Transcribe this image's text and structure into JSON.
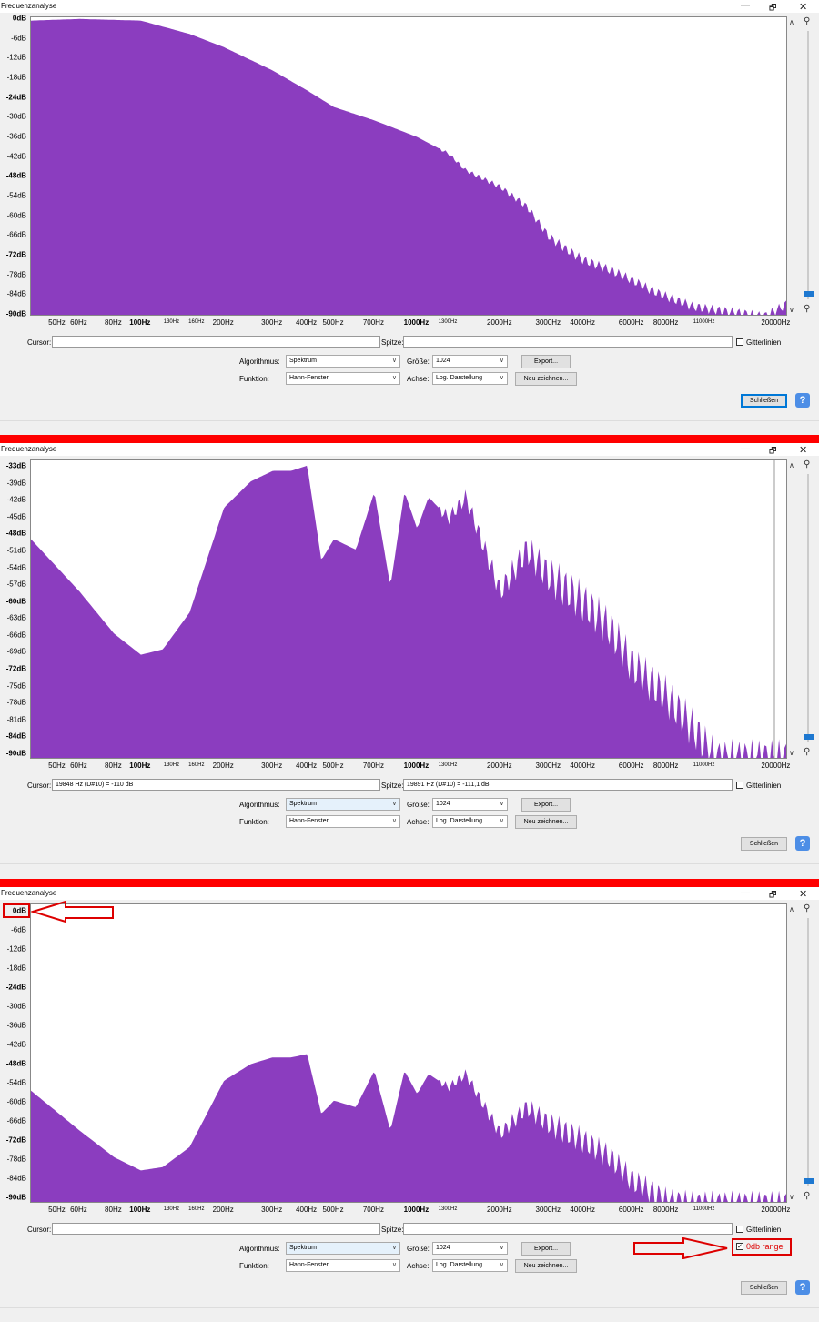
{
  "window": {
    "title": "Frequenzanalyse",
    "minimize": "—",
    "maximize": "🗗",
    "close": "✕"
  },
  "x_ticks": [
    {
      "label": "50Hz",
      "hz": 50
    },
    {
      "label": "60Hz",
      "hz": 60
    },
    {
      "label": "80Hz",
      "hz": 80
    },
    {
      "label": "100Hz",
      "hz": 100,
      "bold": true
    },
    {
      "label": "130Hz",
      "hz": 130,
      "small": true
    },
    {
      "label": "160Hz",
      "hz": 160,
      "small": true
    },
    {
      "label": "200Hz",
      "hz": 200
    },
    {
      "label": "300Hz",
      "hz": 300
    },
    {
      "label": "400Hz",
      "hz": 400
    },
    {
      "label": "500Hz",
      "hz": 500
    },
    {
      "label": "700Hz",
      "hz": 700
    },
    {
      "label": "1000Hz",
      "hz": 1000,
      "bold": true
    },
    {
      "label": "1300Hz",
      "hz": 1300,
      "small": true
    },
    {
      "label": "2000Hz",
      "hz": 2000
    },
    {
      "label": "3000Hz",
      "hz": 3000
    },
    {
      "label": "4000Hz",
      "hz": 4000
    },
    {
      "label": "6000Hz",
      "hz": 6000
    },
    {
      "label": "8000Hz",
      "hz": 8000
    },
    {
      "label": "11000Hz",
      "hz": 11000,
      "small": true
    },
    {
      "label": "20000Hz",
      "hz": 20000
    }
  ],
  "controls": {
    "cursor_label": "Cursor:",
    "peak_label": "Spitze:",
    "grid_label": "Gitterlinien",
    "algorithm_label": "Algorithmus:",
    "algorithm_value": "Spektrum",
    "function_label": "Funktion:",
    "function_value": "Hann-Fenster",
    "size_label": "Größe:",
    "size_value": "1024",
    "axis_label": "Achse:",
    "axis_value": "Log. Darstellung",
    "export_button": "Export...",
    "redraw_button": "Neu zeichnen...",
    "close_button": "Schließen",
    "help_button": "?"
  },
  "panels": [
    {
      "y_ticks": [
        "0dB",
        "-6dB",
        "-12dB",
        "-18dB",
        "-24dB",
        "-30dB",
        "-36dB",
        "-42dB",
        "-48dB",
        "-54dB",
        "-60dB",
        "-66dB",
        "-72dB",
        "-78dB",
        "-84dB",
        "-90dB"
      ],
      "y_bold": [
        "0dB",
        "-24dB",
        "-48dB",
        "-72dB",
        "-90dB"
      ],
      "y_range": [
        -90,
        0
      ],
      "cursor_value": "",
      "peak_value": "",
      "grid_checked": false
    },
    {
      "y_ticks": [
        "-33dB",
        "-39dB",
        "-42dB",
        "-45dB",
        "-48dB",
        "-51dB",
        "-54dB",
        "-57dB",
        "-60dB",
        "-63dB",
        "-66dB",
        "-69dB",
        "-72dB",
        "-75dB",
        "-78dB",
        "-81dB",
        "-84dB",
        "-90dB"
      ],
      "y_bold": [
        "-33dB",
        "-48dB",
        "-60dB",
        "-72dB",
        "-84dB",
        "-90dB"
      ],
      "y_range": [
        -90,
        -33
      ],
      "cursor_value": "19848 Hz (D#10) = -110 dB",
      "peak_value": "19891 Hz (D#10) = -111,1 dB",
      "grid_checked": false
    },
    {
      "y_ticks": [
        "0dB",
        "-6dB",
        "-12dB",
        "-18dB",
        "-24dB",
        "-30dB",
        "-36dB",
        "-42dB",
        "-48dB",
        "-54dB",
        "-60dB",
        "-66dB",
        "-72dB",
        "-78dB",
        "-84dB",
        "-90dB"
      ],
      "y_bold": [
        "0dB",
        "-24dB",
        "-48dB",
        "-72dB",
        "-90dB"
      ],
      "y_range": [
        -90,
        0
      ],
      "cursor_value": "",
      "peak_value": "",
      "grid_checked": false,
      "extra_checkbox_label": "0db range",
      "extra_checkbox_checked": true
    }
  ],
  "colors": {
    "spectrum": "#8b3dbf",
    "annotation": "#dd0000",
    "separator": "#ff0000",
    "accent": "#1e78d0"
  },
  "chart_data": [
    {
      "type": "area",
      "x_scale": "log",
      "xlim": [
        40,
        22000
      ],
      "ylim": [
        -90,
        0
      ],
      "x": [
        40,
        60,
        100,
        150,
        200,
        300,
        400,
        500,
        700,
        1000,
        1300,
        1500,
        2000,
        2500,
        3000,
        3500,
        4000,
        5000,
        6000,
        7000,
        8000,
        10000,
        12000,
        15000,
        18000,
        20000,
        22000
      ],
      "y": [
        -1,
        -0.5,
        -1,
        -5,
        -9,
        -16,
        -22,
        -27,
        -31,
        -36,
        -41,
        -46,
        -51,
        -57,
        -66,
        -70,
        -73,
        -76,
        -79,
        -82,
        -84,
        -87,
        -88,
        -89,
        -90,
        -88,
        -86
      ]
    },
    {
      "type": "area",
      "x_scale": "log",
      "xlim": [
        40,
        22000
      ],
      "ylim": [
        -90,
        -33
      ],
      "x": [
        40,
        60,
        80,
        100,
        120,
        150,
        200,
        250,
        300,
        350,
        400,
        450,
        500,
        600,
        700,
        800,
        900,
        1000,
        1100,
        1300,
        1500,
        2000,
        2500,
        3000,
        4000,
        5000,
        6000,
        8000,
        10000,
        12000,
        15000,
        20000
      ],
      "y": [
        -48,
        -58,
        -66,
        -70,
        -69,
        -62,
        -42,
        -37,
        -35,
        -35,
        -34,
        -52,
        -48,
        -50,
        -39,
        -57,
        -39,
        -46,
        -40,
        -44,
        -40,
        -58,
        -50,
        -55,
        -60,
        -65,
        -72,
        -78,
        -84,
        -90,
        -90,
        -90
      ]
    },
    {
      "type": "area",
      "x_scale": "log",
      "xlim": [
        40,
        22000
      ],
      "ylim": [
        -90,
        0
      ],
      "x": [
        40,
        60,
        80,
        100,
        120,
        150,
        200,
        250,
        300,
        350,
        400,
        450,
        500,
        600,
        700,
        800,
        900,
        1000,
        1100,
        1300,
        1500,
        2000,
        2500,
        3000,
        4000,
        5000,
        6000,
        8000,
        10000,
        12000,
        15000,
        20000
      ],
      "y": [
        -56,
        -68,
        -76,
        -80,
        -79,
        -73,
        -53,
        -48,
        -46,
        -46,
        -45,
        -63,
        -59,
        -61,
        -50,
        -68,
        -50,
        -57,
        -51,
        -55,
        -51,
        -69,
        -61,
        -66,
        -71,
        -76,
        -83,
        -89,
        -90,
        -90,
        -90,
        -90
      ]
    }
  ],
  "annotations": {
    "arrow_target_top": "0dB",
    "arrow_target_checkbox": "0db range"
  }
}
